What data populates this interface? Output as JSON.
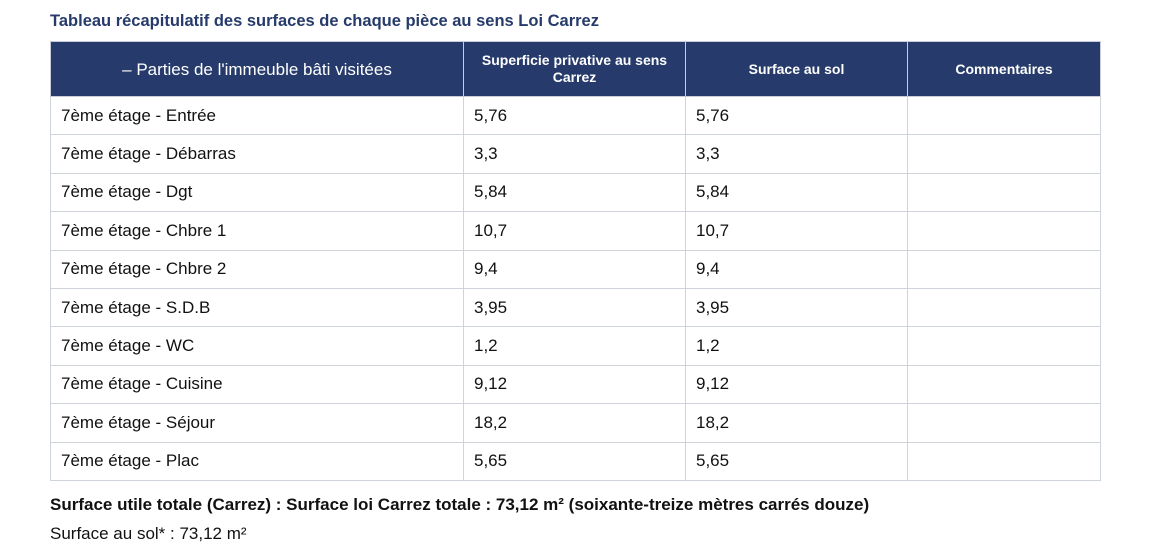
{
  "title": "Tableau récapitulatif des surfaces de chaque pièce au sens Loi Carrez",
  "table": {
    "headers": [
      "– Parties de l'immeuble bâti visitées",
      "Superficie privative au sens Carrez",
      "Surface au sol",
      "Commentaires"
    ],
    "rows": [
      {
        "piece": "7ème étage - Entrée",
        "carrez": "5,76",
        "sol": "5,76",
        "commentaire": ""
      },
      {
        "piece": "7ème étage - Débarras",
        "carrez": "3,3",
        "sol": "3,3",
        "commentaire": ""
      },
      {
        "piece": "7ème étage - Dgt",
        "carrez": "5,84",
        "sol": "5,84",
        "commentaire": ""
      },
      {
        "piece": "7ème étage - Chbre 1",
        "carrez": "10,7",
        "sol": "10,7",
        "commentaire": ""
      },
      {
        "piece": "7ème étage - Chbre 2",
        "carrez": "9,4",
        "sol": "9,4",
        "commentaire": ""
      },
      {
        "piece": "7ème étage - S.D.B",
        "carrez": "3,95",
        "sol": "3,95",
        "commentaire": ""
      },
      {
        "piece": "7ème étage - WC",
        "carrez": "1,2",
        "sol": "1,2",
        "commentaire": ""
      },
      {
        "piece": "7ème étage - Cuisine",
        "carrez": "9,12",
        "sol": "9,12",
        "commentaire": ""
      },
      {
        "piece": "7ème étage - Séjour",
        "carrez": "18,2",
        "sol": "18,2",
        "commentaire": ""
      },
      {
        "piece": "7ème étage - Plac",
        "carrez": "5,65",
        "sol": "5,65",
        "commentaire": ""
      }
    ]
  },
  "summary": {
    "total_carrez": "Surface utile totale (Carrez) : Surface loi Carrez totale : 73,12 m² (soixante-treize mètres carrés douze)",
    "total_sol": "Surface au sol* : 73,12 m²"
  },
  "colors": {
    "header_bg": "#263b6b",
    "title_text": "#263b6b",
    "border": "#cfd3da"
  }
}
